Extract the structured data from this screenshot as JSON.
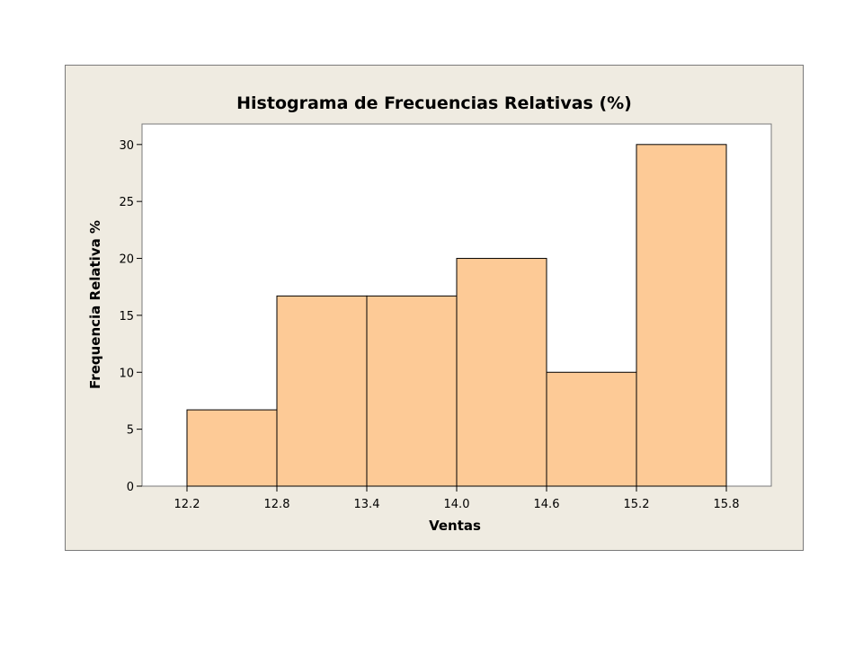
{
  "chart_data": {
    "type": "bar",
    "title": "Histograma de Frecuencias Relativas (%)",
    "xlabel": "Ventas",
    "ylabel": "Frequencia Relativa %",
    "bin_edges": [
      12.2,
      12.8,
      13.4,
      14.0,
      14.6,
      15.2,
      15.8
    ],
    "x_tick_labels": [
      "12.2",
      "12.8",
      "13.4",
      "14.0",
      "14.6",
      "15.2",
      "15.8"
    ],
    "values": [
      6.7,
      16.7,
      16.7,
      20.0,
      10.0,
      30.0
    ],
    "y_ticks": [
      0,
      5,
      10,
      15,
      20,
      25,
      30
    ],
    "y_tick_labels": [
      "0",
      "5",
      "10",
      "15",
      "20",
      "25",
      "30"
    ],
    "xlim": [
      11.9,
      16.1
    ],
    "ylim": [
      0,
      31.8
    ],
    "grid": false,
    "legend": "none",
    "colors": {
      "bar_fill": "#fdca96",
      "bar_stroke": "#000000",
      "plot_background": "#ffffff",
      "figure_background": "#efebe1"
    }
  }
}
